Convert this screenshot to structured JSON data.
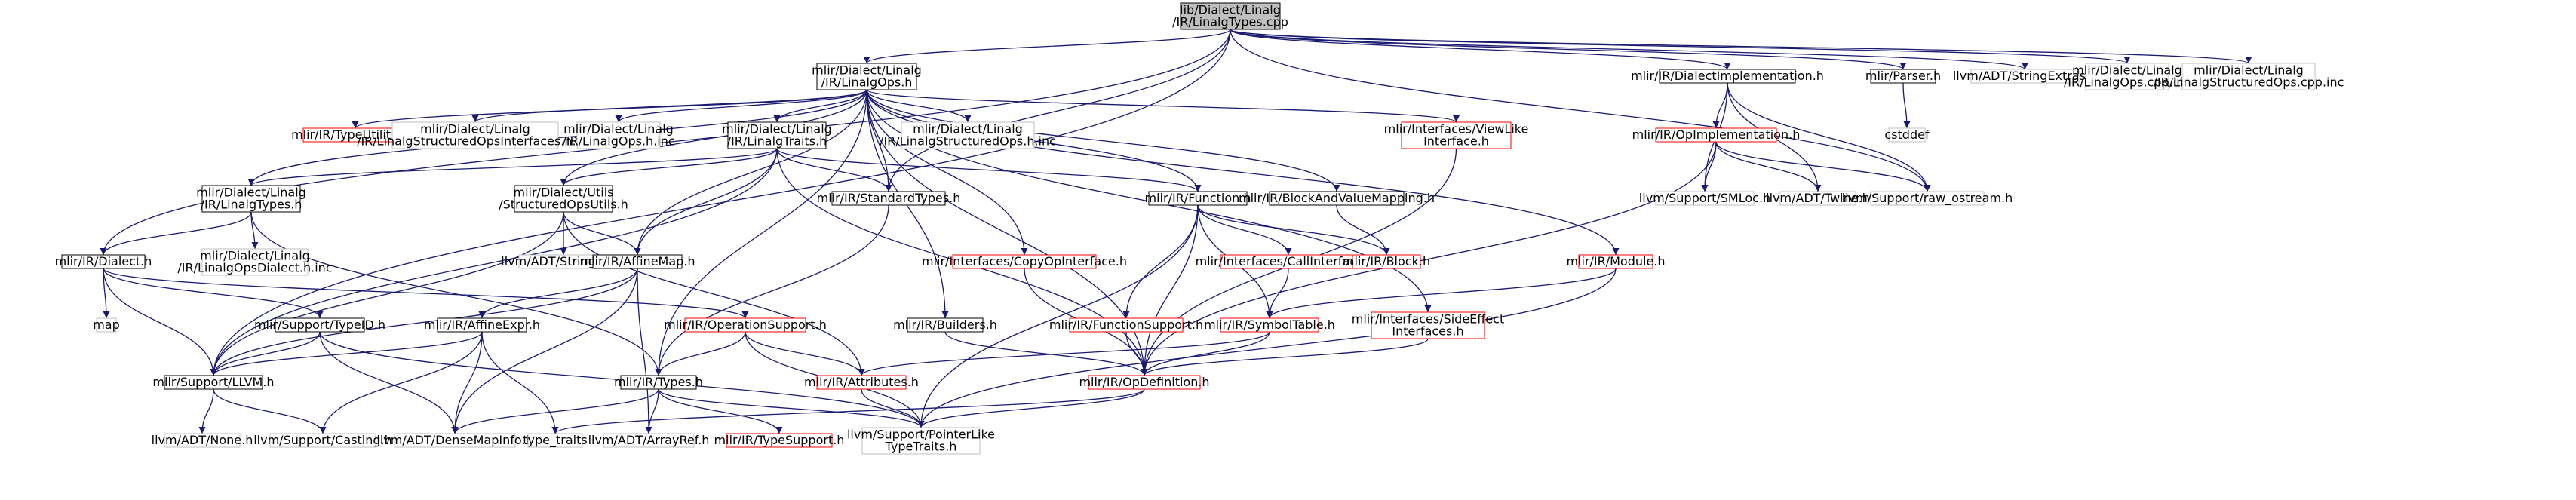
{
  "graph": {
    "nodes": [
      {
        "id": "root",
        "lines": [
          "lib/Dialect/Linalg",
          "/IR/LinalgTypes.cpp"
        ],
        "style": "root"
      },
      {
        "id": "linalgops",
        "lines": [
          "mlir/Dialect/Linalg",
          "/IR/LinalgOps.h"
        ],
        "style": "normal"
      },
      {
        "id": "dialectimpl",
        "lines": [
          "mlir/IR/DialectImplementation.h"
        ],
        "style": "normal"
      },
      {
        "id": "parser",
        "lines": [
          "mlir/Parser.h"
        ],
        "style": "normal"
      },
      {
        "id": "stringextras",
        "lines": [
          "llvm/ADT/StringExtras.h"
        ],
        "style": "gray"
      },
      {
        "id": "opsinc",
        "lines": [
          "mlir/Dialect/Linalg",
          "/IR/LinalgOps.cpp.inc"
        ],
        "style": "gray"
      },
      {
        "id": "structopsinc",
        "lines": [
          "mlir/Dialect/Linalg",
          "/IR/LinalgStructuredOps.cpp.inc"
        ],
        "style": "gray"
      },
      {
        "id": "typeutils",
        "lines": [
          "mlir/IR/TypeUtilities.h"
        ],
        "style": "red"
      },
      {
        "id": "structifaceinc",
        "lines": [
          "mlir/Dialect/Linalg",
          "/IR/LinalgStructuredOpsInterfaces.h.inc"
        ],
        "style": "gray"
      },
      {
        "id": "opshinc",
        "lines": [
          "mlir/Dialect/Linalg",
          "/IR/LinalgOps.h.inc"
        ],
        "style": "gray"
      },
      {
        "id": "traits",
        "lines": [
          "mlir/Dialect/Linalg",
          "/IR/LinalgTraits.h"
        ],
        "style": "normal"
      },
      {
        "id": "structopshinc",
        "lines": [
          "mlir/Dialect/Linalg",
          "/IR/LinalgStructuredOps.h.inc"
        ],
        "style": "gray"
      },
      {
        "id": "viewlike",
        "lines": [
          "mlir/Interfaces/ViewLike",
          "Interface.h"
        ],
        "style": "red"
      },
      {
        "id": "opimpl",
        "lines": [
          "mlir/IR/OpImplementation.h"
        ],
        "style": "red"
      },
      {
        "id": "cstddef",
        "lines": [
          "cstddef"
        ],
        "style": "gray"
      },
      {
        "id": "linalgtypes",
        "lines": [
          "mlir/Dialect/Linalg",
          "/IR/LinalgTypes.h"
        ],
        "style": "normal"
      },
      {
        "id": "structopsutils",
        "lines": [
          "mlir/Dialect/Utils",
          "/StructuredOpsUtils.h"
        ],
        "style": "normal"
      },
      {
        "id": "standardtypes",
        "lines": [
          "mlir/IR/StandardTypes.h"
        ],
        "style": "normal"
      },
      {
        "id": "function",
        "lines": [
          "mlir/IR/Function.h"
        ],
        "style": "normal"
      },
      {
        "id": "blockvaluemap",
        "lines": [
          "mlir/IR/BlockAndValueMapping.h"
        ],
        "style": "normal"
      },
      {
        "id": "smloc",
        "lines": [
          "llvm/Support/SMLoc.h"
        ],
        "style": "gray"
      },
      {
        "id": "twine",
        "lines": [
          "llvm/ADT/Twine.h"
        ],
        "style": "gray"
      },
      {
        "id": "rawostream",
        "lines": [
          "llvm/Support/raw_ostream.h"
        ],
        "style": "gray"
      },
      {
        "id": "dialect",
        "lines": [
          "mlir/IR/Dialect.h"
        ],
        "style": "normal"
      },
      {
        "id": "opsdialectinc",
        "lines": [
          "mlir/Dialect/Linalg",
          "/IR/LinalgOpsDialect.h.inc"
        ],
        "style": "gray"
      },
      {
        "id": "stringref",
        "lines": [
          "llvm/ADT/StringRef.h"
        ],
        "style": "gray"
      },
      {
        "id": "affinemap",
        "lines": [
          "mlir/IR/AffineMap.h"
        ],
        "style": "normal"
      },
      {
        "id": "copyopiface",
        "lines": [
          "mlir/Interfaces/CopyOpInterface.h"
        ],
        "style": "red"
      },
      {
        "id": "callifaces",
        "lines": [
          "mlir/Interfaces/CallInterfaces.h"
        ],
        "style": "red"
      },
      {
        "id": "block",
        "lines": [
          "mlir/IR/Block.h"
        ],
        "style": "red"
      },
      {
        "id": "module",
        "lines": [
          "mlir/IR/Module.h"
        ],
        "style": "red"
      },
      {
        "id": "map",
        "lines": [
          "map"
        ],
        "style": "gray"
      },
      {
        "id": "typeid",
        "lines": [
          "mlir/Support/TypeID.h"
        ],
        "style": "normal"
      },
      {
        "id": "affineexpr",
        "lines": [
          "mlir/IR/AffineExpr.h"
        ],
        "style": "normal"
      },
      {
        "id": "opsupport",
        "lines": [
          "mlir/IR/OperationSupport.h"
        ],
        "style": "red"
      },
      {
        "id": "builders",
        "lines": [
          "mlir/IR/Builders.h"
        ],
        "style": "normal"
      },
      {
        "id": "funcsupport",
        "lines": [
          "mlir/IR/FunctionSupport.h"
        ],
        "style": "red"
      },
      {
        "id": "symboltable",
        "lines": [
          "mlir/IR/SymbolTable.h"
        ],
        "style": "red"
      },
      {
        "id": "sideeffect",
        "lines": [
          "mlir/Interfaces/SideEffect",
          "Interfaces.h"
        ],
        "style": "red"
      },
      {
        "id": "llvmh",
        "lines": [
          "mlir/Support/LLVM.h"
        ],
        "style": "normal"
      },
      {
        "id": "types",
        "lines": [
          "mlir/IR/Types.h"
        ],
        "style": "normal"
      },
      {
        "id": "attributes",
        "lines": [
          "mlir/IR/Attributes.h"
        ],
        "style": "red"
      },
      {
        "id": "opdef",
        "lines": [
          "mlir/IR/OpDefinition.h"
        ],
        "style": "red"
      },
      {
        "id": "none",
        "lines": [
          "llvm/ADT/None.h"
        ],
        "style": "gray"
      },
      {
        "id": "casting",
        "lines": [
          "llvm/Support/Casting.h"
        ],
        "style": "gray"
      },
      {
        "id": "densemapinfo",
        "lines": [
          "llvm/ADT/DenseMapInfo.h"
        ],
        "style": "gray"
      },
      {
        "id": "typetraits",
        "lines": [
          "type_traits"
        ],
        "style": "gray"
      },
      {
        "id": "arrayref",
        "lines": [
          "llvm/ADT/ArrayRef.h"
        ],
        "style": "gray"
      },
      {
        "id": "typesupport",
        "lines": [
          "mlir/IR/TypeSupport.h"
        ],
        "style": "red"
      },
      {
        "id": "ptrlike",
        "lines": [
          "llvm/Support/PointerLike",
          "TypeTraits.h"
        ],
        "style": "gray"
      }
    ],
    "edges": [
      [
        "root",
        "linalgops"
      ],
      [
        "root",
        "dialectimpl"
      ],
      [
        "root",
        "parser"
      ],
      [
        "root",
        "stringextras"
      ],
      [
        "root",
        "opsinc"
      ],
      [
        "root",
        "structopsinc"
      ],
      [
        "root",
        "standardtypes"
      ],
      [
        "root",
        "dialect"
      ],
      [
        "root",
        "llvmh"
      ],
      [
        "root",
        "rawostream"
      ],
      [
        "linalgops",
        "typeutils"
      ],
      [
        "linalgops",
        "structifaceinc"
      ],
      [
        "linalgops",
        "opshinc"
      ],
      [
        "linalgops",
        "traits"
      ],
      [
        "linalgops",
        "structopshinc"
      ],
      [
        "linalgops",
        "viewlike"
      ],
      [
        "linalgops",
        "linalgtypes"
      ],
      [
        "linalgops",
        "structopsutils"
      ],
      [
        "linalgops",
        "standardtypes"
      ],
      [
        "linalgops",
        "function"
      ],
      [
        "linalgops",
        "blockvaluemap"
      ],
      [
        "linalgops",
        "affinemap"
      ],
      [
        "linalgops",
        "copyopiface"
      ],
      [
        "linalgops",
        "module"
      ],
      [
        "linalgops",
        "builders"
      ],
      [
        "linalgops",
        "sideeffect"
      ],
      [
        "linalgops",
        "opdef"
      ],
      [
        "linalgops",
        "types"
      ],
      [
        "traits",
        "linalgtypes"
      ],
      [
        "traits",
        "structopsutils"
      ],
      [
        "traits",
        "standardtypes"
      ],
      [
        "traits",
        "function"
      ],
      [
        "traits",
        "affinemap"
      ],
      [
        "traits",
        "llvmh"
      ],
      [
        "traits",
        "opdef"
      ],
      [
        "dialectimpl",
        "opimpl"
      ],
      [
        "dialectimpl",
        "smloc"
      ],
      [
        "dialectimpl",
        "twine"
      ],
      [
        "dialectimpl",
        "rawostream"
      ],
      [
        "opimpl",
        "smloc"
      ],
      [
        "opimpl",
        "twine"
      ],
      [
        "opimpl",
        "rawostream"
      ],
      [
        "opimpl",
        "opdef"
      ],
      [
        "parser",
        "cstddef"
      ],
      [
        "viewlike",
        "opdef"
      ],
      [
        "linalgtypes",
        "dialect"
      ],
      [
        "linalgtypes",
        "opsdialectinc"
      ],
      [
        "linalgtypes",
        "types"
      ],
      [
        "structopsutils",
        "stringref"
      ],
      [
        "structopsutils",
        "affinemap"
      ],
      [
        "structopsutils",
        "attributes"
      ],
      [
        "structopsutils",
        "llvmh"
      ],
      [
        "standardtypes",
        "types"
      ],
      [
        "function",
        "funcsupport"
      ],
      [
        "function",
        "callifaces"
      ],
      [
        "function",
        "symboltable"
      ],
      [
        "function",
        "block"
      ],
      [
        "function",
        "opdef"
      ],
      [
        "function",
        "ptrlike"
      ],
      [
        "blockvaluemap",
        "block"
      ],
      [
        "dialect",
        "map"
      ],
      [
        "dialect",
        "typeid"
      ],
      [
        "dialect",
        "opsupport"
      ],
      [
        "dialect",
        "llvmh"
      ],
      [
        "affinemap",
        "affineexpr"
      ],
      [
        "affinemap",
        "arrayref"
      ],
      [
        "affinemap",
        "densemapinfo"
      ],
      [
        "affinemap",
        "llvmh"
      ],
      [
        "copyopiface",
        "opdef"
      ],
      [
        "callifaces",
        "symboltable"
      ],
      [
        "module",
        "symboltable"
      ],
      [
        "module",
        "ptrlike"
      ],
      [
        "typeid",
        "llvmh"
      ],
      [
        "typeid",
        "densemapinfo"
      ],
      [
        "typeid",
        "ptrlike"
      ],
      [
        "affineexpr",
        "llvmh"
      ],
      [
        "affineexpr",
        "casting"
      ],
      [
        "affineexpr",
        "densemapinfo"
      ],
      [
        "affineexpr",
        "typetraits"
      ],
      [
        "opsupport",
        "types"
      ],
      [
        "opsupport",
        "attributes"
      ],
      [
        "opsupport",
        "ptrlike"
      ],
      [
        "builders",
        "opdef"
      ],
      [
        "funcsupport",
        "opdef"
      ],
      [
        "symboltable",
        "attributes"
      ],
      [
        "symboltable",
        "opdef"
      ],
      [
        "sideeffect",
        "opdef"
      ],
      [
        "llvmh",
        "none"
      ],
      [
        "llvmh",
        "casting"
      ],
      [
        "types",
        "densemapinfo"
      ],
      [
        "types",
        "arrayref"
      ],
      [
        "types",
        "typesupport"
      ],
      [
        "types",
        "ptrlike"
      ],
      [
        "attributes",
        "ptrlike"
      ],
      [
        "opdef",
        "typetraits"
      ],
      [
        "opdef",
        "ptrlike"
      ]
    ]
  },
  "colors": {
    "edge": "#191970",
    "border_normal": "#000000",
    "border_gray": "#bfbfbf",
    "border_red": "#ff0000",
    "root_fill": "#bfbfbf",
    "text": "#000000"
  }
}
